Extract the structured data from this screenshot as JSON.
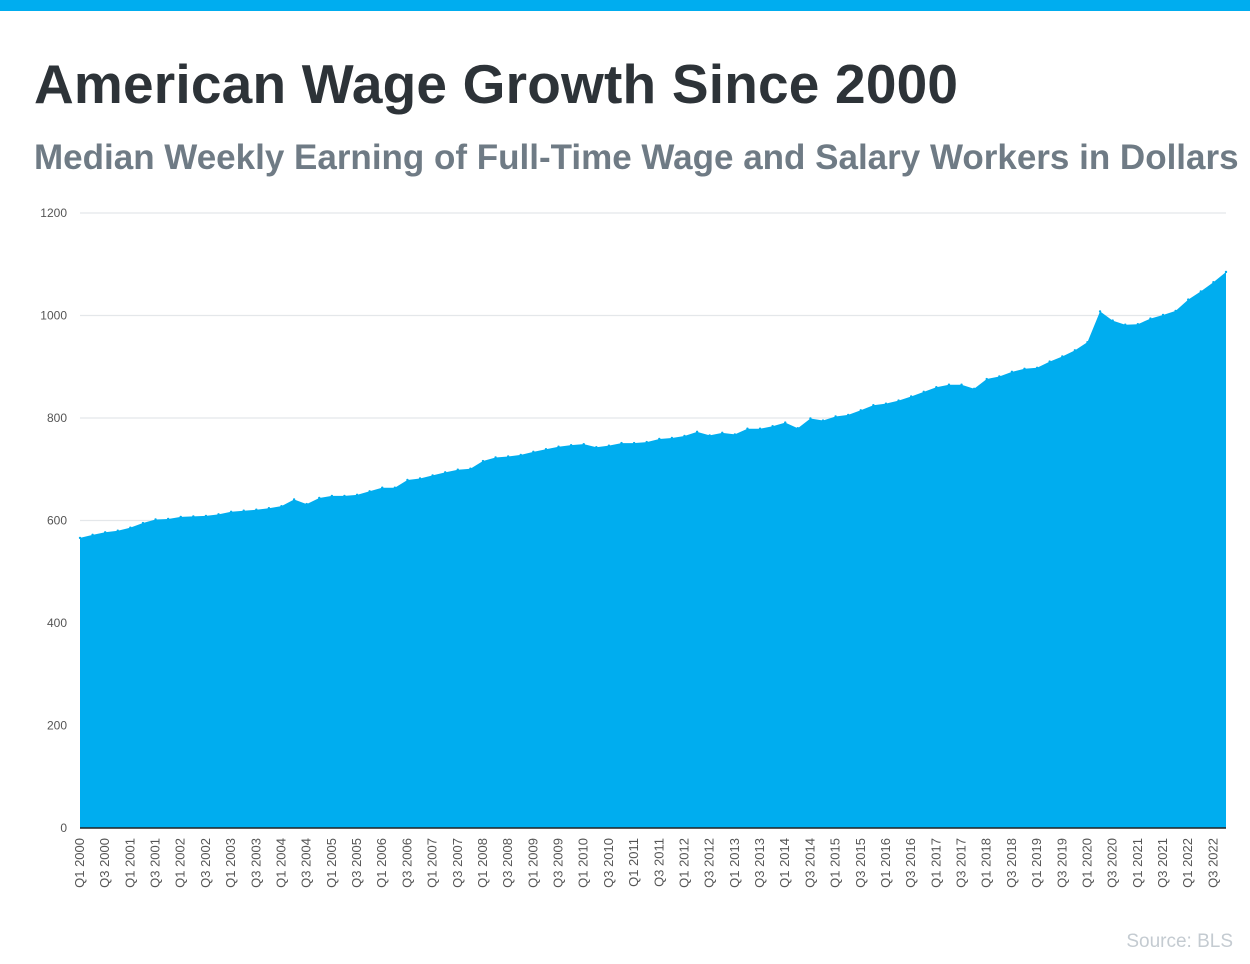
{
  "colors": {
    "accent": "#00adef",
    "title": "#2d3338",
    "subtitle": "#6f7b85",
    "gridline": "#e4e7ea",
    "axis": "#222222",
    "tick_text": "#555555",
    "source": "#c4cbd1"
  },
  "chart_data": {
    "type": "area",
    "title": "American Wage Growth Since 2000",
    "subtitle": "Median Weekly Earning of Full-Time Wage and Salary Workers in Dollars",
    "xlabel": "",
    "ylabel": "",
    "ylim": [
      0,
      1200
    ],
    "yticks": [
      0,
      200,
      400,
      600,
      800,
      1000,
      1200
    ],
    "grid": true,
    "legend": "none",
    "source": "Source: BLS",
    "x": [
      "Q1 2000",
      "Q2 2000",
      "Q3 2000",
      "Q4 2000",
      "Q1 2001",
      "Q2 2001",
      "Q3 2001",
      "Q4 2001",
      "Q1 2002",
      "Q2 2002",
      "Q3 2002",
      "Q4 2002",
      "Q1 2003",
      "Q2 2003",
      "Q3 2003",
      "Q4 2003",
      "Q1 2004",
      "Q2 2004",
      "Q3 2004",
      "Q4 2004",
      "Q1 2005",
      "Q2 2005",
      "Q3 2005",
      "Q4 2005",
      "Q1 2006",
      "Q2 2006",
      "Q3 2006",
      "Q4 2006",
      "Q1 2007",
      "Q2 2007",
      "Q3 2007",
      "Q4 2007",
      "Q1 2008",
      "Q2 2008",
      "Q3 2008",
      "Q4 2008",
      "Q1 2009",
      "Q2 2009",
      "Q3 2009",
      "Q4 2009",
      "Q1 2010",
      "Q2 2010",
      "Q3 2010",
      "Q4 2010",
      "Q1 2011",
      "Q2 2011",
      "Q3 2011",
      "Q4 2011",
      "Q1 2012",
      "Q2 2012",
      "Q3 2012",
      "Q4 2012",
      "Q1 2013",
      "Q2 2013",
      "Q3 2013",
      "Q4 2013",
      "Q1 2014",
      "Q2 2014",
      "Q3 2014",
      "Q4 2014",
      "Q1 2015",
      "Q2 2015",
      "Q3 2015",
      "Q4 2015",
      "Q1 2016",
      "Q2 2016",
      "Q3 2016",
      "Q4 2016",
      "Q1 2017",
      "Q2 2017",
      "Q3 2017",
      "Q4 2017",
      "Q1 2018",
      "Q2 2018",
      "Q3 2018",
      "Q4 2018",
      "Q1 2019",
      "Q2 2019",
      "Q3 2019",
      "Q4 2019",
      "Q1 2020",
      "Q2 2020",
      "Q3 2020",
      "Q4 2020",
      "Q1 2021",
      "Q2 2021",
      "Q3 2021",
      "Q4 2021",
      "Q1 2022",
      "Q2 2022",
      "Q3 2022",
      "Q4 2022"
    ],
    "x_tick_labels": [
      "Q1 2000",
      "Q3 2000",
      "Q1 2001",
      "Q3 2001",
      "Q1 2002",
      "Q3 2002",
      "Q1 2003",
      "Q3 2003",
      "Q1 2004",
      "Q3 2004",
      "Q1 2005",
      "Q3 2005",
      "Q1 2006",
      "Q3 2006",
      "Q1 2007",
      "Q3 2007",
      "Q1 2008",
      "Q3 2008",
      "Q1 2009",
      "Q3 2009",
      "Q1 2010",
      "Q3 2010",
      "Q1 2011",
      "Q3 2011",
      "Q1 2012",
      "Q3 2012",
      "Q1 2013",
      "Q3 2013",
      "Q1 2014",
      "Q3 2014",
      "Q1 2015",
      "Q3 2015",
      "Q1 2016",
      "Q3 2016",
      "Q1 2017",
      "Q3 2017",
      "Q1 2018",
      "Q3 2018",
      "Q1 2019",
      "Q3 2019",
      "Q1 2020",
      "Q3 2020",
      "Q1 2021",
      "Q3 2021",
      "Q1 2022",
      "Q3 2022"
    ],
    "series": [
      {
        "values": [
          566,
          572,
          577,
          580,
          586,
          595,
          602,
          603,
          607,
          608,
          609,
          612,
          617,
          619,
          621,
          624,
          628,
          641,
          632,
          644,
          648,
          648,
          650,
          657,
          664,
          664,
          679,
          682,
          688,
          694,
          699,
          701,
          716,
          723,
          725,
          728,
          734,
          739,
          744,
          747,
          749,
          743,
          746,
          751,
          751,
          753,
          759,
          761,
          765,
          773,
          766,
          771,
          768,
          779,
          779,
          784,
          791,
          780,
          799,
          795,
          803,
          806,
          815,
          825,
          828,
          834,
          842,
          851,
          860,
          865,
          865,
          857,
          876,
          881,
          890,
          896,
          898,
          910,
          920,
          932,
          948,
          1008,
          990,
          982,
          983,
          994,
          1001,
          1009,
          1031,
          1047,
          1065,
          1085
        ]
      }
    ]
  }
}
